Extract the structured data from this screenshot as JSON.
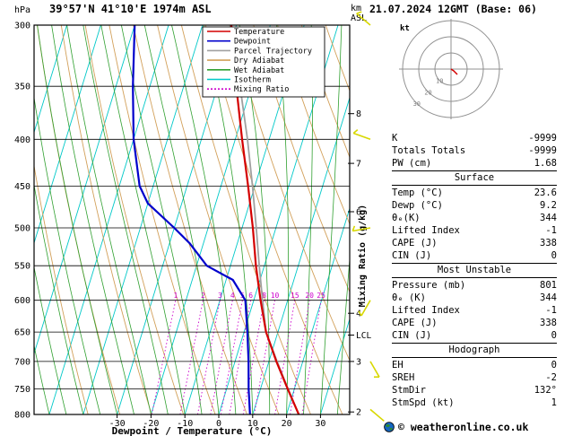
{
  "header": {
    "station": "39°57'N 41°10'E 1974m ASL",
    "datetime": "21.07.2024 12GMT (Base: 06)"
  },
  "axes": {
    "pressure_unit": "hPa",
    "km_unit": "km",
    "asl_label": "ASL",
    "x_title": "Dewpoint / Temperature (°C)",
    "mixing_ratio_title": "Mixing Ratio (g/kg)",
    "lcl_label": "LCL"
  },
  "legend": [
    {
      "label": "Temperature",
      "color": "#d40000",
      "dashed": false
    },
    {
      "label": "Dewpoint",
      "color": "#0000cc",
      "dashed": false
    },
    {
      "label": "Parcel Trajectory",
      "color": "#a0a0a0",
      "dashed": false
    },
    {
      "label": "Dry Adiabat",
      "color": "#d2a05a",
      "dashed": false
    },
    {
      "label": "Wet Adiabat",
      "color": "#30a030",
      "dashed": false
    },
    {
      "label": "Isotherm",
      "color": "#00c8c8",
      "dashed": false
    },
    {
      "label": "Mixing Ratio",
      "color": "#cc00cc",
      "dashed": true
    }
  ],
  "colors": {
    "temperature": "#d40000",
    "dewpoint": "#0000cc",
    "parcel": "#a0a0a0",
    "dry_adiabat": "#d2a05a",
    "wet_adiabat": "#30a030",
    "isotherm": "#00c8c8",
    "mixing_ratio": "#cc00cc",
    "wind_barb": "#d8d800",
    "grid": "#000000"
  },
  "chart_data": {
    "type": "skewt-log-p",
    "pressure_axis": {
      "unit": "hPa",
      "scale": "log",
      "top": 300,
      "bottom": 800,
      "ticks": [
        300,
        350,
        400,
        450,
        500,
        550,
        600,
        650,
        700,
        750,
        800
      ]
    },
    "temp_axis": {
      "unit": "°C",
      "ticks": [
        -30,
        -20,
        -10,
        0,
        10,
        20,
        30
      ]
    },
    "km_axis": {
      "ticks": [
        {
          "km": 8,
          "p": 375
        },
        {
          "km": 7,
          "p": 425
        },
        {
          "km": 6,
          "p": 480
        },
        {
          "km": 4,
          "p": 620
        },
        {
          "km": 3,
          "p": 700
        },
        {
          "km": 2,
          "p": 795
        }
      ],
      "lcl_pressure": 655
    },
    "isotherms": {
      "start": -110,
      "end": 40,
      "step": 10
    },
    "dry_adiabats": {
      "theta_start": 250,
      "theta_end": 390,
      "step": 10
    },
    "wet_adiabats": {
      "t0_start": -55,
      "t0_end": 40,
      "step": 5
    },
    "mixing_ratio": {
      "values": [
        1,
        2,
        3,
        4,
        5,
        6,
        8,
        10,
        15,
        20,
        25
      ],
      "label_pressure": 600,
      "bottom_pressure": 800
    },
    "series": [
      {
        "name": "Temperature",
        "color": "#d40000",
        "points": [
          [
            800,
            23.6
          ],
          [
            750,
            18.0
          ],
          [
            700,
            12.2
          ],
          [
            650,
            6.5
          ],
          [
            600,
            2.0
          ],
          [
            550,
            -2.5
          ],
          [
            500,
            -6.8
          ],
          [
            450,
            -12.0
          ],
          [
            400,
            -18.0
          ],
          [
            350,
            -24.5
          ],
          [
            300,
            -31.5
          ]
        ]
      },
      {
        "name": "Dewpoint",
        "color": "#0000cc",
        "points": [
          [
            800,
            9.2
          ],
          [
            750,
            6.5
          ],
          [
            700,
            4.0
          ],
          [
            650,
            1.0
          ],
          [
            600,
            -2.5
          ],
          [
            570,
            -8.0
          ],
          [
            550,
            -17.0
          ],
          [
            520,
            -24.0
          ],
          [
            500,
            -30.0
          ],
          [
            470,
            -40.0
          ],
          [
            450,
            -44.0
          ],
          [
            400,
            -50.0
          ],
          [
            350,
            -55.0
          ],
          [
            300,
            -60.0
          ]
        ]
      },
      {
        "name": "Parcel Trajectory",
        "color": "#a0a0a0",
        "points": [
          [
            800,
            23.6
          ],
          [
            750,
            18.1
          ],
          [
            700,
            12.4
          ],
          [
            650,
            6.5
          ],
          [
            600,
            2.6
          ],
          [
            550,
            -1.5
          ],
          [
            500,
            -5.8
          ],
          [
            450,
            -10.7
          ],
          [
            400,
            -16.4
          ],
          [
            350,
            -23.4
          ],
          [
            300,
            -31.8
          ]
        ]
      }
    ],
    "wind_barbs": [
      {
        "p": 300,
        "dir": 310,
        "spd": 5
      },
      {
        "p": 400,
        "dir": 290,
        "spd": 5
      },
      {
        "p": 500,
        "dir": 260,
        "spd": 5
      },
      {
        "p": 600,
        "dir": 210,
        "spd": 3
      },
      {
        "p": 700,
        "dir": 150,
        "spd": 3
      },
      {
        "p": 790,
        "dir": 130,
        "spd": 2
      }
    ]
  },
  "hodograph": {
    "unit": "kt",
    "rings": [
      10,
      20,
      30
    ]
  },
  "panel": {
    "rows_top": [
      [
        "K",
        "-9999"
      ],
      [
        "Totals Totals",
        "-9999"
      ],
      [
        "PW (cm)",
        "1.68"
      ]
    ],
    "sections": [
      {
        "title": "Surface",
        "rows": [
          [
            "Temp (°C)",
            "23.6"
          ],
          [
            "Dewp (°C)",
            "9.2"
          ],
          [
            "θₑ(K)",
            "344"
          ],
          [
            "Lifted Index",
            "-1"
          ],
          [
            "CAPE (J)",
            "338"
          ],
          [
            "CIN (J)",
            "0"
          ]
        ]
      },
      {
        "title": "Most Unstable",
        "rows": [
          [
            "Pressure (mb)",
            "801"
          ],
          [
            "θₑ (K)",
            "344"
          ],
          [
            "Lifted Index",
            "-1"
          ],
          [
            "CAPE (J)",
            "338"
          ],
          [
            "CIN (J)",
            "0"
          ]
        ]
      },
      {
        "title": "Hodograph",
        "rows": [
          [
            "EH",
            "0"
          ],
          [
            "SREH",
            "-2"
          ],
          [
            "StmDir",
            "132°"
          ],
          [
            "StmSpd (kt)",
            "1"
          ]
        ]
      }
    ]
  },
  "footer": {
    "copyright": "© weatheronline.co.uk"
  }
}
